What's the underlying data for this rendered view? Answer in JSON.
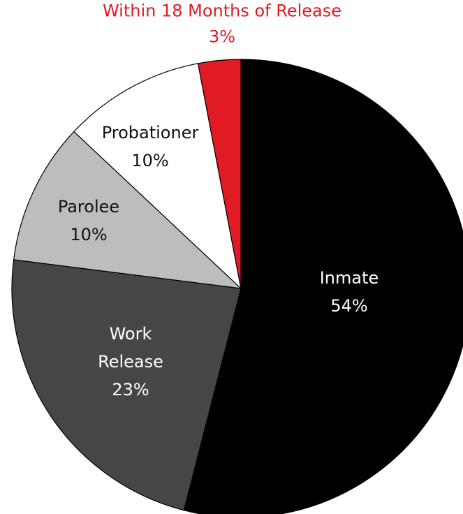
{
  "chart_data": {
    "type": "pie",
    "title": "",
    "slices": [
      {
        "name": "Inmate",
        "value": 54,
        "value_label": "54%",
        "color": "#000000",
        "label_color": "#ffffff"
      },
      {
        "name": "Work Release",
        "name_lines": [
          "Work",
          "Release"
        ],
        "value": 23,
        "value_label": "23%",
        "color": "#464648",
        "label_color": "#ffffff"
      },
      {
        "name": "Parolee",
        "value": 10,
        "value_label": "10%",
        "color": "#bdbdbd",
        "label_color": "#111111"
      },
      {
        "name": "Probationer",
        "value": 10,
        "value_label": "10%",
        "color": "#ffffff",
        "label_color": "#111111"
      },
      {
        "name": "Within 18 Months of Release",
        "value": 3,
        "value_label": "3%",
        "color": "#e01b24",
        "label_color": "#e01b24"
      }
    ],
    "start_angle_deg": 0,
    "direction": "clockwise",
    "stroke_color": "#000000",
    "legend": "none"
  }
}
